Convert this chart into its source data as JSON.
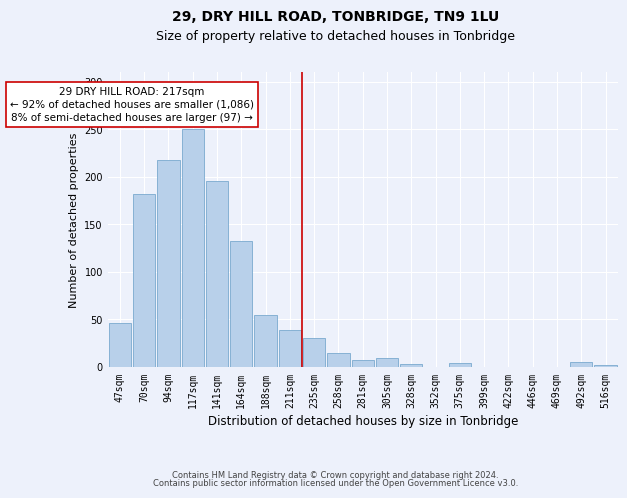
{
  "title": "29, DRY HILL ROAD, TONBRIDGE, TN9 1LU",
  "subtitle": "Size of property relative to detached houses in Tonbridge",
  "xlabel": "Distribution of detached houses by size in Tonbridge",
  "ylabel": "Number of detached properties",
  "categories": [
    "47sqm",
    "70sqm",
    "94sqm",
    "117sqm",
    "141sqm",
    "164sqm",
    "188sqm",
    "211sqm",
    "235sqm",
    "258sqm",
    "281sqm",
    "305sqm",
    "328sqm",
    "352sqm",
    "375sqm",
    "399sqm",
    "422sqm",
    "446sqm",
    "469sqm",
    "492sqm",
    "516sqm"
  ],
  "values": [
    46,
    182,
    218,
    250,
    195,
    132,
    55,
    39,
    30,
    15,
    7,
    9,
    3,
    0,
    4,
    0,
    0,
    0,
    0,
    5,
    2
  ],
  "bar_color": "#b8d0ea",
  "bar_edge_color": "#7aaacf",
  "vline_x": 7.5,
  "vline_color": "#cc0000",
  "annotation_text": "29 DRY HILL ROAD: 217sqm\n← 92% of detached houses are smaller (1,086)\n8% of semi-detached houses are larger (97) →",
  "annotation_box_color": "#ffffff",
  "annotation_box_edge": "#cc0000",
  "ylim": [
    0,
    310
  ],
  "yticks": [
    0,
    50,
    100,
    150,
    200,
    250,
    300
  ],
  "bg_color": "#edf1fb",
  "plot_bg_color": "#edf1fb",
  "footer1": "Contains HM Land Registry data © Crown copyright and database right 2024.",
  "footer2": "Contains public sector information licensed under the Open Government Licence v3.0.",
  "title_fontsize": 10,
  "subtitle_fontsize": 9,
  "tick_fontsize": 7,
  "ylabel_fontsize": 8,
  "xlabel_fontsize": 8.5,
  "annotation_fontsize": 7.5,
  "footer_fontsize": 6
}
